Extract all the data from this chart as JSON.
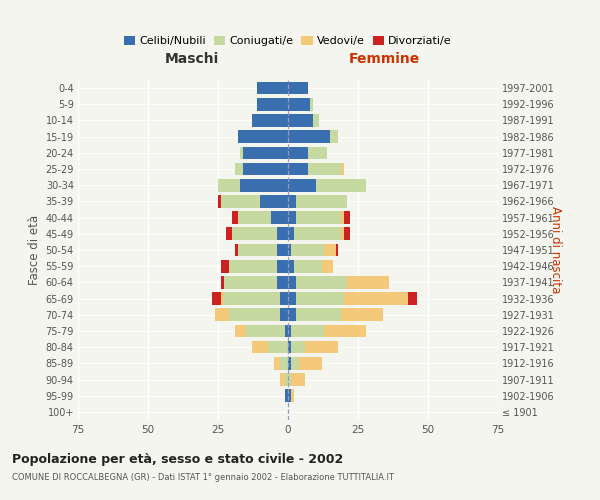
{
  "age_groups": [
    "100+",
    "95-99",
    "90-94",
    "85-89",
    "80-84",
    "75-79",
    "70-74",
    "65-69",
    "60-64",
    "55-59",
    "50-54",
    "45-49",
    "40-44",
    "35-39",
    "30-34",
    "25-29",
    "20-24",
    "15-19",
    "10-14",
    "5-9",
    "0-4"
  ],
  "birth_years": [
    "≤ 1901",
    "1902-1906",
    "1907-1911",
    "1912-1916",
    "1917-1921",
    "1922-1926",
    "1927-1931",
    "1932-1936",
    "1937-1941",
    "1942-1946",
    "1947-1951",
    "1952-1956",
    "1957-1961",
    "1962-1966",
    "1967-1971",
    "1972-1976",
    "1977-1981",
    "1982-1986",
    "1987-1991",
    "1992-1996",
    "1997-2001"
  ],
  "males": {
    "celibi": [
      0,
      1,
      0,
      0,
      0,
      1,
      3,
      3,
      4,
      4,
      4,
      4,
      6,
      10,
      17,
      16,
      16,
      18,
      13,
      11,
      11
    ],
    "coniugati": [
      0,
      0,
      1,
      3,
      7,
      14,
      18,
      20,
      19,
      17,
      14,
      16,
      12,
      14,
      8,
      3,
      1,
      0,
      0,
      0,
      0
    ],
    "vedovi": [
      0,
      0,
      2,
      2,
      6,
      4,
      5,
      1,
      0,
      0,
      0,
      0,
      0,
      0,
      0,
      0,
      0,
      0,
      0,
      0,
      0
    ],
    "divorziati": [
      0,
      0,
      0,
      0,
      0,
      0,
      0,
      3,
      1,
      3,
      1,
      2,
      2,
      1,
      0,
      0,
      0,
      0,
      0,
      0,
      0
    ]
  },
  "females": {
    "nubili": [
      0,
      1,
      0,
      1,
      1,
      1,
      3,
      3,
      3,
      2,
      1,
      2,
      3,
      3,
      10,
      7,
      7,
      15,
      9,
      8,
      7
    ],
    "coniugate": [
      0,
      0,
      1,
      3,
      5,
      12,
      16,
      17,
      18,
      10,
      12,
      17,
      16,
      18,
      18,
      12,
      7,
      3,
      2,
      1,
      0
    ],
    "vedove": [
      0,
      1,
      5,
      8,
      12,
      15,
      15,
      23,
      15,
      4,
      4,
      1,
      1,
      0,
      0,
      1,
      0,
      0,
      0,
      0,
      0
    ],
    "divorziate": [
      0,
      0,
      0,
      0,
      0,
      0,
      0,
      3,
      0,
      0,
      1,
      2,
      2,
      0,
      0,
      0,
      0,
      0,
      0,
      0,
      0
    ]
  },
  "colors": {
    "celibi": "#3a6faf",
    "coniugati": "#c5d9a0",
    "vedovi": "#f5c97a",
    "divorziati": "#cc2222"
  },
  "xlim": 75,
  "title": "Popolazione per età, sesso e stato civile - 2002",
  "subtitle": "COMUNE DI ROCCALBEGNA (GR) - Dati ISTAT 1° gennaio 2002 - Elaborazione TUTTITALIA.IT",
  "xlabel_left": "Maschi",
  "xlabel_right": "Femmine",
  "ylabel_left": "Fasce di età",
  "ylabel_right": "Anni di nascita",
  "bg_color": "#f5f5f0",
  "plot_bg": "#f5f5f0",
  "legend_labels": [
    "Celibi/Nubili",
    "Coniugati/e",
    "Vedovi/e",
    "Divorziati/e"
  ]
}
